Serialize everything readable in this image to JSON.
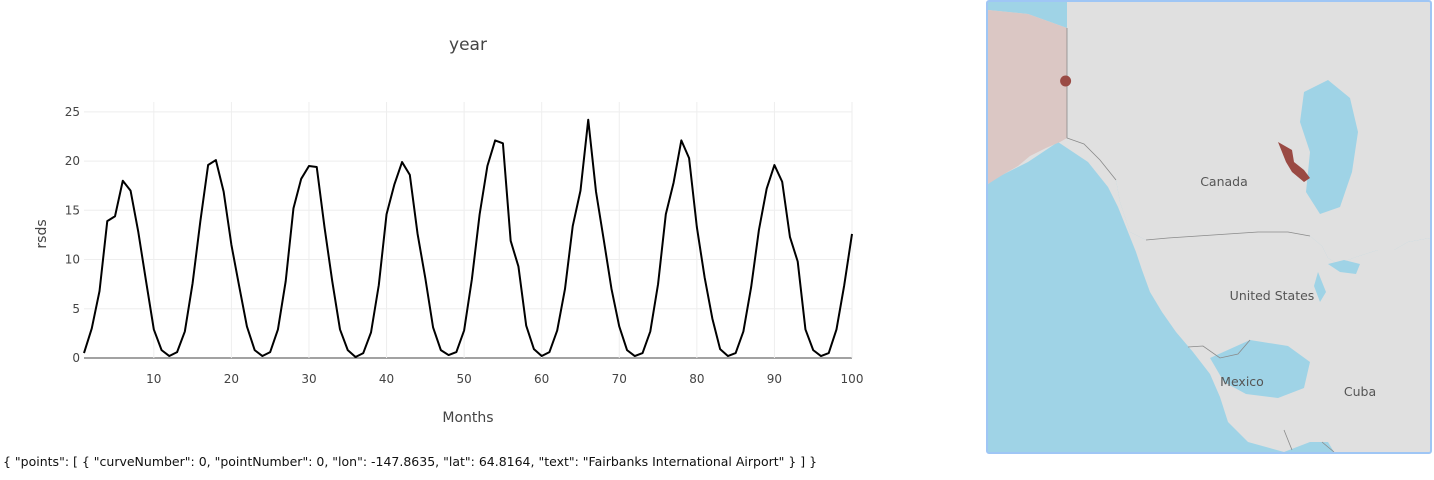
{
  "chart_data": {
    "type": "line",
    "title": "year",
    "xlabel": "Months",
    "ylabel": "rsds",
    "xlim": [
      1,
      100
    ],
    "ylim": [
      0,
      26
    ],
    "xticks": [
      10,
      20,
      30,
      40,
      50,
      60,
      70,
      80,
      90,
      100
    ],
    "yticks": [
      0,
      5,
      10,
      15,
      20,
      25
    ],
    "grid": true,
    "series": [
      {
        "color": "#000000",
        "x": [
          1,
          2,
          3,
          4,
          5,
          6,
          7,
          8,
          9,
          10,
          11,
          12,
          13,
          14,
          15,
          16,
          17,
          18,
          19,
          20,
          21,
          22,
          23,
          24,
          25,
          26,
          27,
          28,
          29,
          30,
          31,
          32,
          33,
          34,
          35,
          36,
          37,
          38,
          39,
          40,
          41,
          42,
          43,
          44,
          45,
          46,
          47,
          48,
          49,
          50,
          51,
          52,
          53,
          54,
          55,
          56,
          57,
          58,
          59,
          60,
          61,
          62,
          63,
          64,
          65,
          66,
          67,
          68,
          69,
          70,
          71,
          72,
          73,
          74,
          75,
          76,
          77,
          78,
          79,
          80,
          81,
          82,
          83,
          84,
          85,
          86,
          87,
          88,
          89,
          90,
          91,
          92,
          93,
          94,
          95,
          96,
          97,
          98,
          99,
          100
        ],
        "y": [
          0.5,
          3.0,
          6.8,
          13.9,
          14.4,
          18.0,
          17.0,
          12.8,
          7.8,
          2.9,
          0.8,
          0.2,
          0.6,
          2.7,
          7.6,
          13.9,
          19.6,
          20.1,
          16.9,
          11.5,
          7.3,
          3.2,
          0.8,
          0.2,
          0.6,
          2.9,
          7.8,
          15.2,
          18.2,
          19.5,
          19.4,
          13.3,
          7.8,
          2.9,
          0.8,
          0.1,
          0.5,
          2.6,
          7.4,
          14.6,
          17.6,
          19.9,
          18.6,
          12.6,
          8.1,
          3.1,
          0.8,
          0.3,
          0.6,
          2.8,
          8.0,
          14.6,
          19.5,
          22.1,
          21.8,
          11.9,
          9.3,
          3.3,
          0.9,
          0.2,
          0.6,
          2.8,
          7.0,
          13.4,
          17.0,
          24.2,
          16.9,
          12.0,
          7.0,
          3.2,
          0.8,
          0.2,
          0.5,
          2.7,
          7.5,
          14.6,
          17.8,
          22.1,
          20.3,
          13.3,
          8.2,
          4.0,
          0.9,
          0.2,
          0.5,
          2.7,
          7.2,
          13.0,
          17.2,
          19.6,
          17.9,
          12.3,
          9.8,
          2.9,
          0.8,
          0.2,
          0.5,
          2.9,
          7.4,
          12.6
        ]
      }
    ]
  },
  "map": {
    "labels": {
      "canada": "Canada",
      "united_states": "United States",
      "mexico": "Mexico",
      "cuba": "Cuba"
    },
    "colors": {
      "ocean": "#9fd3e6",
      "land": "#e0e0e0",
      "selected_region": "#dbc7c4",
      "marker": "#9a4a44",
      "border": "#8a8a8a",
      "frame": "#9fc6f5"
    },
    "marker": {
      "lon": -147.8635,
      "lat": 64.8164,
      "text": "Fairbanks International Airport"
    }
  },
  "selection_readout": "{ \"points\": [ { \"curveNumber\": 0, \"pointNumber\": 0, \"lon\": -147.8635, \"lat\": 64.8164, \"text\": \"Fairbanks International Airport\" } ] }"
}
